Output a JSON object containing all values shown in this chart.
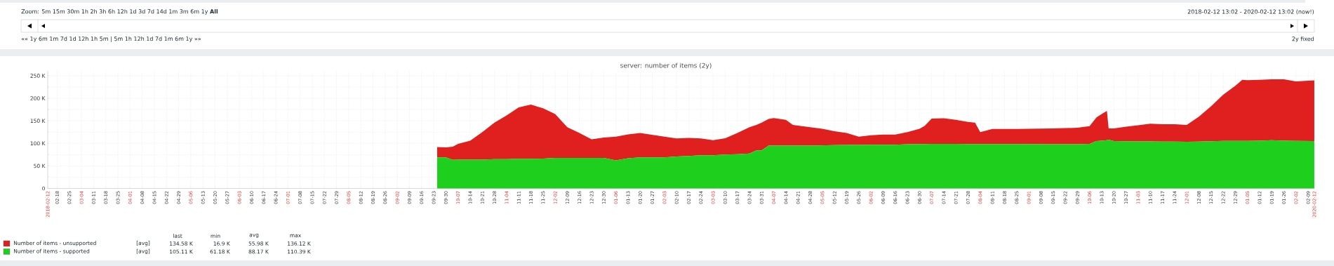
{
  "chart_data": {
    "type": "area",
    "stacked": true,
    "title": "server: number of items (2y)",
    "x": [
      "2018-09-25",
      "2018-09-30",
      "2018-10-04",
      "2018-10-07",
      "2018-10-14",
      "2018-10-21",
      "2018-10-28",
      "2018-11-04",
      "2018-11-11",
      "2018-11-18",
      "2018-11-25",
      "2018-12-02",
      "2018-12-09",
      "2018-12-16",
      "2018-12-23",
      "2018-12-30",
      "2019-01-06",
      "2019-01-13",
      "2019-01-20",
      "2019-01-27",
      "2019-02-03",
      "2019-02-10",
      "2019-02-17",
      "2019-02-24",
      "2019-03-03",
      "2019-03-10",
      "2019-03-17",
      "2019-03-24",
      "2019-03-28",
      "2019-03-31",
      "2019-04-04",
      "2019-04-07",
      "2019-04-14",
      "2019-04-18",
      "2019-04-28",
      "2019-05-05",
      "2019-05-12",
      "2019-05-19",
      "2019-05-26",
      "2019-06-02",
      "2019-06-09",
      "2019-06-16",
      "2019-06-23",
      "2019-06-30",
      "2019-07-03",
      "2019-07-07",
      "2019-07-14",
      "2019-07-21",
      "2019-07-28",
      "2019-08-01",
      "2019-08-04",
      "2019-08-11",
      "2019-08-25",
      "2019-09-15",
      "2019-09-29",
      "2019-10-06",
      "2019-10-10",
      "2019-10-13",
      "2019-10-16",
      "2019-10-17",
      "2019-10-20",
      "2019-10-27",
      "2019-11-03",
      "2019-11-10",
      "2019-11-17",
      "2019-11-24",
      "2019-12-01",
      "2019-12-08",
      "2019-12-15",
      "2019-12-22",
      "2019-12-29",
      "2020-01-02",
      "2020-01-05",
      "2020-01-12",
      "2020-01-19",
      "2020-01-26",
      "2020-02-02",
      "2020-02-12T13:02"
    ],
    "series": [
      {
        "name": "Number of items - supported",
        "color": "#1ecf1e",
        "values": [
          69,
          69,
          63.6,
          64,
          64,
          64,
          65,
          65,
          65.6,
          65.6,
          66,
          67.6,
          67.6,
          67.6,
          67.6,
          67.6,
          62.3,
          67,
          69,
          69,
          69,
          71,
          72,
          73.5,
          73.5,
          75,
          76,
          77.4,
          84.6,
          84.6,
          95,
          95,
          95,
          95,
          95,
          95.5,
          96,
          96.5,
          96.5,
          97,
          97,
          97,
          98,
          98.5,
          98.5,
          99,
          99,
          99,
          98.5,
          98.5,
          98.4,
          98.4,
          98.4,
          98,
          98,
          99,
          105,
          106,
          107,
          108,
          105,
          104.5,
          104.3,
          104.3,
          104,
          104,
          103.7,
          104,
          104.5,
          105.6,
          105.6,
          105.6,
          105.6,
          106,
          107,
          106,
          105.6,
          105.11
        ]
      },
      {
        "name": "Number of items - unsupported",
        "color": "#e01f1f",
        "values": [
          23,
          22,
          28.9,
          35,
          42,
          61,
          81,
          97,
          114.4,
          120.4,
          112,
          97.4,
          68.4,
          55.4,
          41.4,
          45.4,
          52.7,
          53,
          54,
          50,
          46,
          40,
          40,
          37.5,
          33.5,
          36.5,
          47,
          58.6,
          56.4,
          61.4,
          59,
          61,
          57,
          46,
          41,
          37,
          31,
          26.5,
          18.5,
          21,
          22.6,
          22.6,
          27,
          34,
          40.5,
          56,
          56.5,
          53,
          49.1,
          47.5,
          26.6,
          33.6,
          33.6,
          35,
          36.5,
          39,
          52.5,
          59,
          65,
          25,
          28,
          32.5,
          35.7,
          39.3,
          38.4,
          38.4,
          37.3,
          55,
          77.5,
          102.4,
          122.1,
          135.2,
          134.4,
          134.8,
          135,
          136,
          131.9,
          134.58
        ]
      }
    ],
    "xlim": [
      "2018-02-12T13:02",
      "2020-02-12T13:02"
    ],
    "xticks": [
      {
        "value": "2018-02-12T13:02",
        "label": "2018-02-12"
      },
      {
        "value": "2018-02-18",
        "label": "02-18"
      },
      {
        "value": "2018-02-25",
        "label": "02-25"
      },
      {
        "value": "2018-03-04",
        "label": "03-04"
      },
      {
        "value": "2018-03-11",
        "label": "03-11"
      },
      {
        "value": "2018-03-18",
        "label": "03-18"
      },
      {
        "value": "2018-03-25",
        "label": "03-25"
      },
      {
        "value": "2018-04-01",
        "label": "04-01"
      },
      {
        "value": "2018-04-08",
        "label": "04-08"
      },
      {
        "value": "2018-04-15",
        "label": "04-15"
      },
      {
        "value": "2018-04-22",
        "label": "04-22"
      },
      {
        "value": "2018-04-29",
        "label": "04-29"
      },
      {
        "value": "2018-05-06",
        "label": "05-06"
      },
      {
        "value": "2018-05-13",
        "label": "05-13"
      },
      {
        "value": "2018-05-20",
        "label": "05-20"
      },
      {
        "value": "2018-05-27",
        "label": "05-27"
      },
      {
        "value": "2018-06-03",
        "label": "06-03"
      },
      {
        "value": "2018-06-10",
        "label": "06-10"
      },
      {
        "value": "2018-06-17",
        "label": "06-17"
      },
      {
        "value": "2018-06-24",
        "label": "06-24"
      },
      {
        "value": "2018-07-01",
        "label": "07-01"
      },
      {
        "value": "2018-07-08",
        "label": "07-08"
      },
      {
        "value": "2018-07-15",
        "label": "07-15"
      },
      {
        "value": "2018-07-22",
        "label": "07-22"
      },
      {
        "value": "2018-07-29",
        "label": "07-29"
      },
      {
        "value": "2018-08-05",
        "label": "08-05"
      },
      {
        "value": "2018-08-12",
        "label": "08-12"
      },
      {
        "value": "2018-08-19",
        "label": "08-19"
      },
      {
        "value": "2018-08-26",
        "label": "08-26"
      },
      {
        "value": "2018-09-02",
        "label": "09-02"
      },
      {
        "value": "2018-09-09",
        "label": "09-09"
      },
      {
        "value": "2018-09-16",
        "label": "09-16"
      },
      {
        "value": "2018-09-23",
        "label": "09-23"
      },
      {
        "value": "2018-09-30",
        "label": "09-30"
      },
      {
        "value": "2018-10-07",
        "label": "10-07"
      },
      {
        "value": "2018-10-14",
        "label": "10-14"
      },
      {
        "value": "2018-10-21",
        "label": "10-21"
      },
      {
        "value": "2018-10-28",
        "label": "10-28"
      },
      {
        "value": "2018-11-04",
        "label": "11-04"
      },
      {
        "value": "2018-11-11",
        "label": "11-11"
      },
      {
        "value": "2018-11-18",
        "label": "11-18"
      },
      {
        "value": "2018-11-25",
        "label": "11-25"
      },
      {
        "value": "2018-12-02",
        "label": "12-02"
      },
      {
        "value": "2018-12-09",
        "label": "12-09"
      },
      {
        "value": "2018-12-16",
        "label": "12-16"
      },
      {
        "value": "2018-12-23",
        "label": "12-23"
      },
      {
        "value": "2018-12-30",
        "label": "12-30"
      },
      {
        "value": "2019-01-06",
        "label": "01-06"
      },
      {
        "value": "2019-01-13",
        "label": "01-13"
      },
      {
        "value": "2019-01-20",
        "label": "01-20"
      },
      {
        "value": "2019-01-27",
        "label": "01-27"
      },
      {
        "value": "2019-02-03",
        "label": "02-03"
      },
      {
        "value": "2019-02-10",
        "label": "02-10"
      },
      {
        "value": "2019-02-17",
        "label": "02-17"
      },
      {
        "value": "2019-02-24",
        "label": "02-24"
      },
      {
        "value": "2019-03-03",
        "label": "03-03"
      },
      {
        "value": "2019-03-10",
        "label": "03-10"
      },
      {
        "value": "2019-03-17",
        "label": "03-17"
      },
      {
        "value": "2019-03-24",
        "label": "03-24"
      },
      {
        "value": "2019-03-31",
        "label": "03-31"
      },
      {
        "value": "2019-04-07",
        "label": "04-07"
      },
      {
        "value": "2019-04-14",
        "label": "04-14"
      },
      {
        "value": "2019-04-21",
        "label": "04-21"
      },
      {
        "value": "2019-04-28",
        "label": "04-28"
      },
      {
        "value": "2019-05-05",
        "label": "05-05"
      },
      {
        "value": "2019-05-12",
        "label": "05-12"
      },
      {
        "value": "2019-05-19",
        "label": "05-19"
      },
      {
        "value": "2019-05-26",
        "label": "05-26"
      },
      {
        "value": "2019-06-02",
        "label": "06-02"
      },
      {
        "value": "2019-06-09",
        "label": "06-09"
      },
      {
        "value": "2019-06-16",
        "label": "06-16"
      },
      {
        "value": "2019-06-23",
        "label": "06-23"
      },
      {
        "value": "2019-06-30",
        "label": "06-30"
      },
      {
        "value": "2019-07-07",
        "label": "07-07"
      },
      {
        "value": "2019-07-14",
        "label": "07-14"
      },
      {
        "value": "2019-07-21",
        "label": "07-21"
      },
      {
        "value": "2019-07-28",
        "label": "07-28"
      },
      {
        "value": "2019-08-04",
        "label": "08-04"
      },
      {
        "value": "2019-08-11",
        "label": "08-11"
      },
      {
        "value": "2019-08-18",
        "label": "08-18"
      },
      {
        "value": "2019-08-25",
        "label": "08-25"
      },
      {
        "value": "2019-09-01",
        "label": "09-01"
      },
      {
        "value": "2019-09-08",
        "label": "09-08"
      },
      {
        "value": "2019-09-15",
        "label": "09-15"
      },
      {
        "value": "2019-09-22",
        "label": "09-22"
      },
      {
        "value": "2019-09-29",
        "label": "09-29"
      },
      {
        "value": "2019-10-06",
        "label": "10-06"
      },
      {
        "value": "2019-10-13",
        "label": "10-13"
      },
      {
        "value": "2019-10-20",
        "label": "10-20"
      },
      {
        "value": "2019-10-27",
        "label": "10-27"
      },
      {
        "value": "2019-11-03",
        "label": "11-03"
      },
      {
        "value": "2019-11-10",
        "label": "11-10"
      },
      {
        "value": "2019-11-17",
        "label": "11-17"
      },
      {
        "value": "2019-11-24",
        "label": "11-24"
      },
      {
        "value": "2019-12-01",
        "label": "12-01"
      },
      {
        "value": "2019-12-08",
        "label": "12-08"
      },
      {
        "value": "2019-12-15",
        "label": "12-15"
      },
      {
        "value": "2019-12-22",
        "label": "12-22"
      },
      {
        "value": "2019-12-29",
        "label": "12-29"
      },
      {
        "value": "2020-01-05",
        "label": "01-05"
      },
      {
        "value": "2020-01-12",
        "label": "01-12"
      },
      {
        "value": "2020-01-19",
        "label": "01-19"
      },
      {
        "value": "2020-01-26",
        "label": "01-26"
      },
      {
        "value": "2020-02-02",
        "label": "02-02"
      },
      {
        "value": "2020-02-09",
        "label": "02-09"
      },
      {
        "value": "2020-02-12T13:02",
        "label": "2020-02-12"
      }
    ],
    "ylim": [
      0,
      260
    ],
    "yticks": [
      0,
      {
        "value": 25,
        "label": null
      },
      {
        "value": 50,
        "label": "50 K"
      },
      {
        "value": 75,
        "label": null
      },
      {
        "value": 100,
        "label": "100 K"
      },
      {
        "value": 125,
        "label": null
      },
      {
        "value": 150,
        "label": "150 K"
      },
      {
        "value": 175,
        "label": null
      },
      {
        "value": 200,
        "label": "200 K"
      },
      {
        "value": 225,
        "label": null
      },
      {
        "value": 250,
        "label": "250 K"
      }
    ],
    "grid": true,
    "legend": "bottom left",
    "annotations": [
      "Zoom: 5m 15m 30m 1h 2h 3h 6h 12h 1d 3d 7d 14d 1m 3m 6m 1y **All**",
      "«« 1y 6m 1m 7d 1d 12h 1h 5m | 5m 1h 12h 1d 7d 1m 6m 1y »»",
      "2018-02-12 13:02 - 2020-02-12 13:02 (now!)",
      "2y fixed",
      "last",
      "min",
      "avg",
      "max",
      "[avg]",
      "134.58 K",
      "16.9 K",
      "55.98 K",
      "136.12 K",
      "[avg]",
      "105.11 K",
      "61.18 K",
      "88.17 K",
      "110.39 K"
    ]
  }
}
